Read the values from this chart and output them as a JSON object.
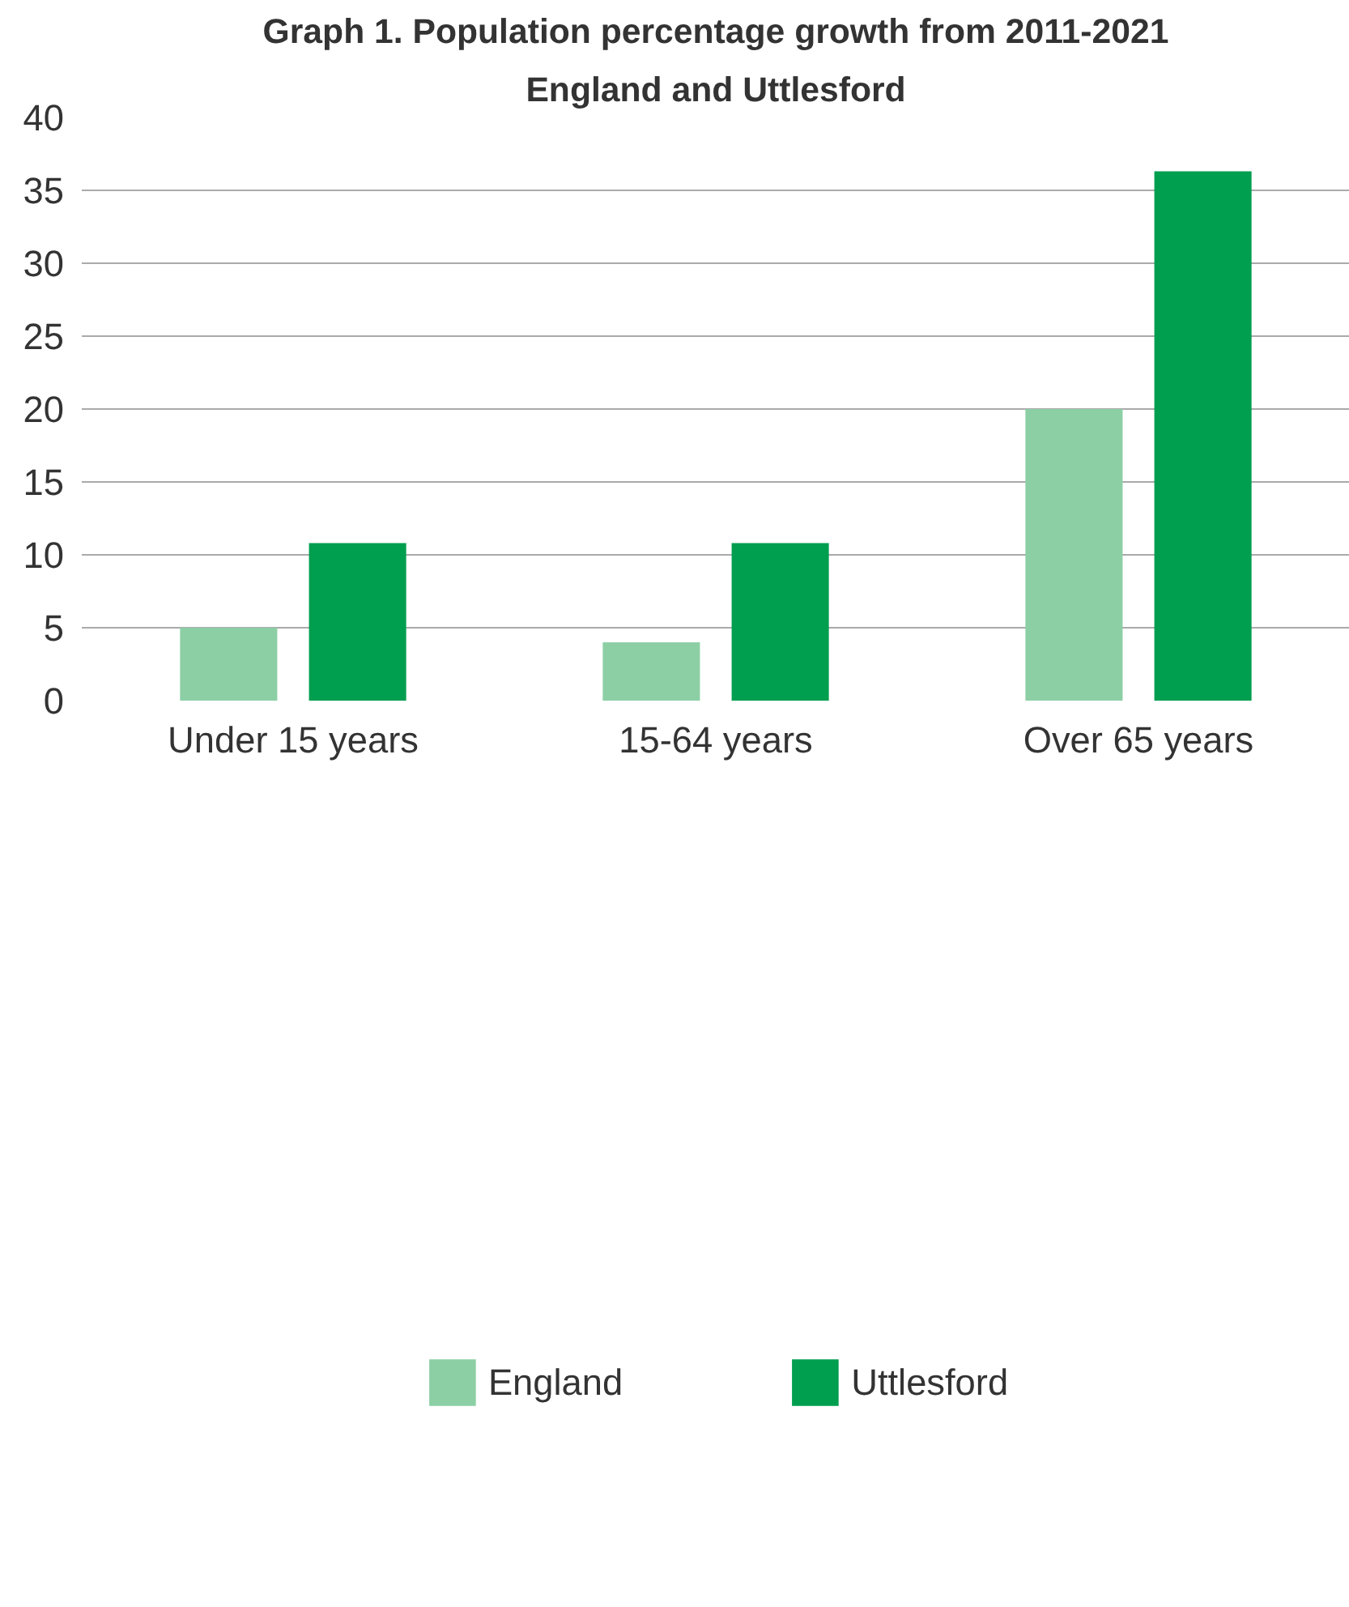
{
  "chart_data": {
    "type": "bar",
    "title": "Graph 1. Population percentage growth from 2011-2021",
    "subtitle": "England and Uttlesford",
    "categories": [
      "Under 15 years",
      "15-64 years",
      "Over 65 years"
    ],
    "series": [
      {
        "name": "England",
        "color": "#8ccfa5",
        "values": [
          5,
          4,
          20
        ]
      },
      {
        "name": "Uttlesford",
        "color": "#009e4f",
        "values": [
          10.8,
          10.8,
          36.3
        ]
      }
    ],
    "ylim": [
      0,
      40
    ],
    "yticks": [
      0,
      5,
      10,
      15,
      20,
      25,
      30,
      35,
      40
    ],
    "grid": "y",
    "legend": "bottom"
  }
}
